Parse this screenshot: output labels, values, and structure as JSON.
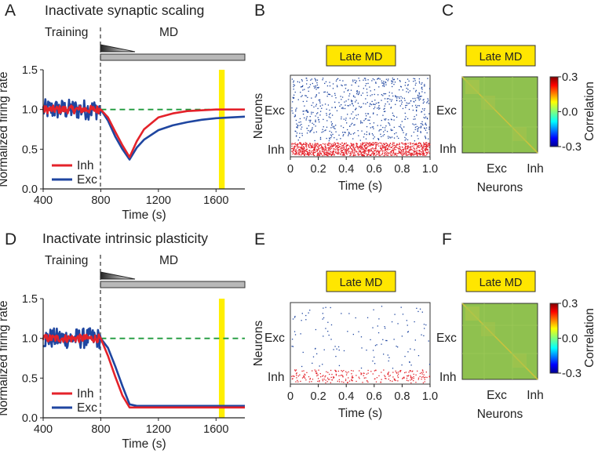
{
  "colors": {
    "inh": "#e4222a",
    "exc": "#1f46a0",
    "target": "#1e9a3c",
    "highlight": "#ffef00",
    "badge": "#ffe600",
    "bar": "#b8b8b8",
    "matrix": "#8fc14f",
    "matrix_diag": "#c9c23e"
  },
  "icons": {
    "md_ramp": "ramp-triangle-icon"
  },
  "common": {
    "ylabel": "Normalized firing rate",
    "xlabel": "Time (s)",
    "training_label": "Training",
    "md_label": "MD",
    "legend": [
      "Inh",
      "Exc"
    ],
    "raster_ylabel": "Neurons",
    "raster_xlabel": "Time (s)",
    "raster_exc": "Exc",
    "raster_inh": "Inh",
    "corr_xlabel": "Neurons",
    "corr_exc": "Exc",
    "corr_inh": "Inh",
    "colorbar_label": "Correlation",
    "badge": "Late MD"
  },
  "rows": [
    {
      "letters": [
        "A",
        "B",
        "C"
      ],
      "title": "Inactivate synaptic scaling",
      "raster_density": {
        "exc": 0.55,
        "inh": 1.0
      }
    },
    {
      "letters": [
        "D",
        "E",
        "F"
      ],
      "title": "Inactivate intrinsic plasticity",
      "raster_density": {
        "exc": 0.09,
        "inh": 0.22
      }
    }
  ],
  "chart_data": [
    {
      "type": "line",
      "panel": "A",
      "title": "Inactivate synaptic scaling",
      "xlabel": "Time (s)",
      "ylabel": "Normalized firing rate",
      "xlim": [
        400,
        1800
      ],
      "ylim": [
        0,
        1.5
      ],
      "xticks": [
        400,
        800,
        1200,
        1600
      ],
      "yticks": [
        0.0,
        0.5,
        1.0,
        1.5
      ],
      "md_onset": 800,
      "target_rate": 1.0,
      "highlight": [
        1620,
        1660
      ],
      "series": [
        {
          "name": "Inh",
          "x": [
            800,
            850,
            900,
            950,
            1000,
            1050,
            1100,
            1200,
            1300,
            1400,
            1500,
            1600,
            1700,
            1800
          ],
          "y": [
            1.0,
            0.9,
            0.72,
            0.55,
            0.4,
            0.6,
            0.75,
            0.9,
            0.95,
            0.98,
            0.99,
            1.0,
            1.0,
            1.0
          ],
          "noise_before_onset": 0.05
        },
        {
          "name": "Exc",
          "x": [
            800,
            850,
            900,
            950,
            1000,
            1050,
            1100,
            1200,
            1300,
            1400,
            1500,
            1600,
            1700,
            1800
          ],
          "y": [
            1.0,
            0.86,
            0.66,
            0.5,
            0.37,
            0.52,
            0.62,
            0.74,
            0.8,
            0.84,
            0.87,
            0.89,
            0.9,
            0.91
          ],
          "noise_before_onset": 0.13
        }
      ]
    },
    {
      "type": "line",
      "panel": "D",
      "title": "Inactivate intrinsic plasticity",
      "xlabel": "Time (s)",
      "ylabel": "Normalized firing rate",
      "xlim": [
        400,
        1800
      ],
      "ylim": [
        0,
        1.5
      ],
      "xticks": [
        400,
        800,
        1200,
        1600
      ],
      "yticks": [
        0.0,
        0.5,
        1.0,
        1.5
      ],
      "md_onset": 800,
      "target_rate": 1.0,
      "highlight": [
        1620,
        1660
      ],
      "series": [
        {
          "name": "Inh",
          "x": [
            800,
            850,
            900,
            950,
            1000,
            1050,
            1200,
            1400,
            1600,
            1800
          ],
          "y": [
            1.0,
            0.78,
            0.52,
            0.28,
            0.13,
            0.13,
            0.13,
            0.13,
            0.13,
            0.13
          ],
          "noise_before_onset": 0.05
        },
        {
          "name": "Exc",
          "x": [
            800,
            850,
            900,
            950,
            1000,
            1050,
            1200,
            1400,
            1600,
            1800
          ],
          "y": [
            1.0,
            0.88,
            0.65,
            0.4,
            0.17,
            0.15,
            0.15,
            0.15,
            0.15,
            0.15
          ],
          "noise_before_onset": 0.13
        }
      ]
    },
    {
      "type": "scatter",
      "panel": "B",
      "title": "Late MD",
      "xlabel": "Time (s)",
      "ylabel": "Neurons",
      "xlim": [
        0,
        1.0
      ],
      "xticks": [
        0,
        0.2,
        0.4,
        0.6,
        0.8,
        1.0
      ],
      "groups": [
        "Exc",
        "Inh"
      ]
    },
    {
      "type": "scatter",
      "panel": "E",
      "title": "Late MD",
      "xlabel": "Time (s)",
      "ylabel": "Neurons",
      "xlim": [
        0,
        1.0
      ],
      "xticks": [
        0,
        0.2,
        0.4,
        0.6,
        0.8,
        1.0
      ],
      "groups": [
        "Exc",
        "Inh"
      ]
    },
    {
      "type": "heatmap",
      "panel": "C",
      "title": "Late MD",
      "xlabel": "Neurons",
      "ylabels": [
        "Exc",
        "Inh"
      ],
      "xlabels": [
        "Exc",
        "Inh"
      ],
      "colorbar": {
        "label": "Correlation",
        "range": [
          -0.3,
          0.3
        ],
        "ticks": [
          0.3,
          0.0,
          -0.3
        ]
      }
    },
    {
      "type": "heatmap",
      "panel": "F",
      "title": "Late MD",
      "xlabel": "Neurons",
      "ylabels": [
        "Exc",
        "Inh"
      ],
      "xlabels": [
        "Exc",
        "Inh"
      ],
      "colorbar": {
        "label": "Correlation",
        "range": [
          -0.3,
          0.3
        ],
        "ticks": [
          0.3,
          0.0,
          -0.3
        ]
      }
    }
  ]
}
